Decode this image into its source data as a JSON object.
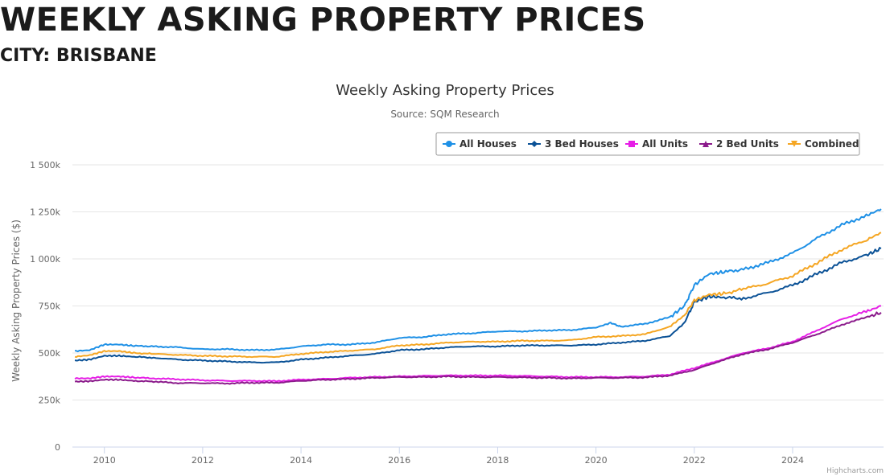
{
  "page": {
    "heading": "WEEKLY ASKING PROPERTY PRICES",
    "city": "CITY: BRISBANE"
  },
  "credits": "Highcharts.com",
  "chart_data": {
    "type": "line",
    "title": "Weekly Asking Property Prices",
    "subtitle": "Source: SQM Research",
    "xlabel": "",
    "ylabel": "Weekly Asking Property Prices ($)",
    "xlim": [
      2009.35,
      2025.85
    ],
    "ylim": [
      0,
      1500000
    ],
    "x_ticks": [
      2010,
      2012,
      2014,
      2016,
      2018,
      2020,
      2022,
      2024
    ],
    "x_tick_labels": [
      "2010",
      "2012",
      "2014",
      "2016",
      "2018",
      "2020",
      "2022",
      "2024"
    ],
    "y_ticks": [
      0,
      250000,
      500000,
      750000,
      1000000,
      1250000,
      1500000
    ],
    "y_tick_labels": [
      "0",
      "250k",
      "500k",
      "750k",
      "1 000k",
      "1 250k",
      "1 500k"
    ],
    "grid": "horizontal",
    "legend_position": "top-right",
    "series": [
      {
        "name": "All Houses",
        "color": "#1e90e6",
        "marker": "circle",
        "points": [
          [
            2009.4,
            510000
          ],
          [
            2009.7,
            515000
          ],
          [
            2010.0,
            545000
          ],
          [
            2010.3,
            545000
          ],
          [
            2010.6,
            538000
          ],
          [
            2011.0,
            535000
          ],
          [
            2011.5,
            530000
          ],
          [
            2012.0,
            520000
          ],
          [
            2012.5,
            520000
          ],
          [
            2013.0,
            515000
          ],
          [
            2013.5,
            518000
          ],
          [
            2014.0,
            535000
          ],
          [
            2014.5,
            545000
          ],
          [
            2015.0,
            545000
          ],
          [
            2015.5,
            555000
          ],
          [
            2016.0,
            580000
          ],
          [
            2016.5,
            585000
          ],
          [
            2017.0,
            600000
          ],
          [
            2017.5,
            605000
          ],
          [
            2018.0,
            615000
          ],
          [
            2018.5,
            615000
          ],
          [
            2019.0,
            620000
          ],
          [
            2019.5,
            622000
          ],
          [
            2020.0,
            635000
          ],
          [
            2020.3,
            660000
          ],
          [
            2020.5,
            640000
          ],
          [
            2021.0,
            655000
          ],
          [
            2021.5,
            690000
          ],
          [
            2021.8,
            750000
          ],
          [
            2022.0,
            860000
          ],
          [
            2022.3,
            920000
          ],
          [
            2022.6,
            930000
          ],
          [
            2023.0,
            945000
          ],
          [
            2023.5,
            980000
          ],
          [
            2024.0,
            1030000
          ],
          [
            2024.5,
            1110000
          ],
          [
            2025.0,
            1180000
          ],
          [
            2025.5,
            1230000
          ],
          [
            2025.8,
            1265000
          ]
        ]
      },
      {
        "name": "3 Bed Houses",
        "color": "#0a5196",
        "marker": "diamond",
        "points": [
          [
            2009.4,
            460000
          ],
          [
            2009.7,
            465000
          ],
          [
            2010.0,
            485000
          ],
          [
            2010.3,
            485000
          ],
          [
            2010.6,
            480000
          ],
          [
            2011.0,
            475000
          ],
          [
            2011.5,
            465000
          ],
          [
            2012.0,
            460000
          ],
          [
            2012.5,
            455000
          ],
          [
            2013.0,
            450000
          ],
          [
            2013.5,
            450000
          ],
          [
            2014.0,
            465000
          ],
          [
            2014.5,
            475000
          ],
          [
            2015.0,
            485000
          ],
          [
            2015.5,
            495000
          ],
          [
            2016.0,
            515000
          ],
          [
            2016.5,
            520000
          ],
          [
            2017.0,
            530000
          ],
          [
            2017.5,
            535000
          ],
          [
            2018.0,
            535000
          ],
          [
            2018.5,
            540000
          ],
          [
            2019.0,
            540000
          ],
          [
            2019.5,
            540000
          ],
          [
            2020.0,
            545000
          ],
          [
            2020.5,
            555000
          ],
          [
            2021.0,
            565000
          ],
          [
            2021.5,
            590000
          ],
          [
            2021.8,
            660000
          ],
          [
            2022.0,
            770000
          ],
          [
            2022.3,
            800000
          ],
          [
            2022.6,
            795000
          ],
          [
            2023.0,
            790000
          ],
          [
            2023.5,
            820000
          ],
          [
            2024.0,
            860000
          ],
          [
            2024.5,
            920000
          ],
          [
            2025.0,
            980000
          ],
          [
            2025.5,
            1020000
          ],
          [
            2025.8,
            1055000
          ]
        ]
      },
      {
        "name": "All Units",
        "color": "#e61ee6",
        "marker": "square",
        "points": [
          [
            2009.4,
            365000
          ],
          [
            2009.7,
            365000
          ],
          [
            2010.0,
            375000
          ],
          [
            2010.3,
            375000
          ],
          [
            2010.6,
            370000
          ],
          [
            2011.0,
            365000
          ],
          [
            2011.5,
            360000
          ],
          [
            2012.0,
            355000
          ],
          [
            2012.5,
            352000
          ],
          [
            2013.0,
            352000
          ],
          [
            2013.5,
            350000
          ],
          [
            2014.0,
            358000
          ],
          [
            2014.5,
            362000
          ],
          [
            2015.0,
            368000
          ],
          [
            2015.5,
            372000
          ],
          [
            2016.0,
            375000
          ],
          [
            2016.5,
            378000
          ],
          [
            2017.0,
            380000
          ],
          [
            2017.5,
            380000
          ],
          [
            2018.0,
            380000
          ],
          [
            2018.5,
            378000
          ],
          [
            2019.0,
            375000
          ],
          [
            2019.5,
            372000
          ],
          [
            2020.0,
            372000
          ],
          [
            2020.5,
            372000
          ],
          [
            2021.0,
            375000
          ],
          [
            2021.5,
            385000
          ],
          [
            2022.0,
            420000
          ],
          [
            2022.5,
            460000
          ],
          [
            2023.0,
            500000
          ],
          [
            2023.5,
            525000
          ],
          [
            2024.0,
            560000
          ],
          [
            2024.5,
            620000
          ],
          [
            2025.0,
            680000
          ],
          [
            2025.5,
            720000
          ],
          [
            2025.8,
            750000
          ]
        ]
      },
      {
        "name": "2 Bed Units",
        "color": "#8b1a8b",
        "marker": "triangle",
        "points": [
          [
            2009.4,
            348000
          ],
          [
            2009.7,
            350000
          ],
          [
            2010.0,
            358000
          ],
          [
            2010.3,
            358000
          ],
          [
            2010.6,
            352000
          ],
          [
            2011.0,
            348000
          ],
          [
            2011.5,
            340000
          ],
          [
            2012.0,
            340000
          ],
          [
            2012.5,
            338000
          ],
          [
            2013.0,
            342000
          ],
          [
            2013.5,
            342000
          ],
          [
            2014.0,
            352000
          ],
          [
            2014.5,
            358000
          ],
          [
            2015.0,
            362000
          ],
          [
            2015.5,
            368000
          ],
          [
            2016.0,
            372000
          ],
          [
            2016.5,
            372000
          ],
          [
            2017.0,
            375000
          ],
          [
            2017.5,
            372000
          ],
          [
            2018.0,
            372000
          ],
          [
            2018.5,
            370000
          ],
          [
            2019.0,
            368000
          ],
          [
            2019.5,
            365000
          ],
          [
            2020.0,
            368000
          ],
          [
            2020.5,
            368000
          ],
          [
            2021.0,
            370000
          ],
          [
            2021.5,
            380000
          ],
          [
            2022.0,
            410000
          ],
          [
            2022.5,
            455000
          ],
          [
            2023.0,
            495000
          ],
          [
            2023.5,
            520000
          ],
          [
            2024.0,
            555000
          ],
          [
            2024.5,
            600000
          ],
          [
            2025.0,
            650000
          ],
          [
            2025.5,
            690000
          ],
          [
            2025.8,
            715000
          ]
        ]
      },
      {
        "name": "Combined",
        "color": "#f5a623",
        "marker": "triangle-down",
        "points": [
          [
            2009.4,
            480000
          ],
          [
            2009.7,
            488000
          ],
          [
            2010.0,
            510000
          ],
          [
            2010.3,
            510000
          ],
          [
            2010.6,
            500000
          ],
          [
            2011.0,
            495000
          ],
          [
            2011.5,
            490000
          ],
          [
            2012.0,
            485000
          ],
          [
            2012.5,
            482000
          ],
          [
            2013.0,
            480000
          ],
          [
            2013.5,
            480000
          ],
          [
            2014.0,
            495000
          ],
          [
            2014.5,
            505000
          ],
          [
            2015.0,
            512000
          ],
          [
            2015.5,
            520000
          ],
          [
            2016.0,
            540000
          ],
          [
            2016.5,
            545000
          ],
          [
            2017.0,
            555000
          ],
          [
            2017.5,
            560000
          ],
          [
            2018.0,
            560000
          ],
          [
            2018.5,
            565000
          ],
          [
            2019.0,
            565000
          ],
          [
            2019.5,
            568000
          ],
          [
            2020.0,
            585000
          ],
          [
            2020.5,
            590000
          ],
          [
            2021.0,
            600000
          ],
          [
            2021.5,
            640000
          ],
          [
            2021.8,
            700000
          ],
          [
            2022.0,
            780000
          ],
          [
            2022.3,
            810000
          ],
          [
            2022.6,
            815000
          ],
          [
            2023.0,
            840000
          ],
          [
            2023.5,
            870000
          ],
          [
            2024.0,
            910000
          ],
          [
            2024.5,
            980000
          ],
          [
            2025.0,
            1050000
          ],
          [
            2025.5,
            1100000
          ],
          [
            2025.8,
            1140000
          ]
        ]
      }
    ]
  }
}
